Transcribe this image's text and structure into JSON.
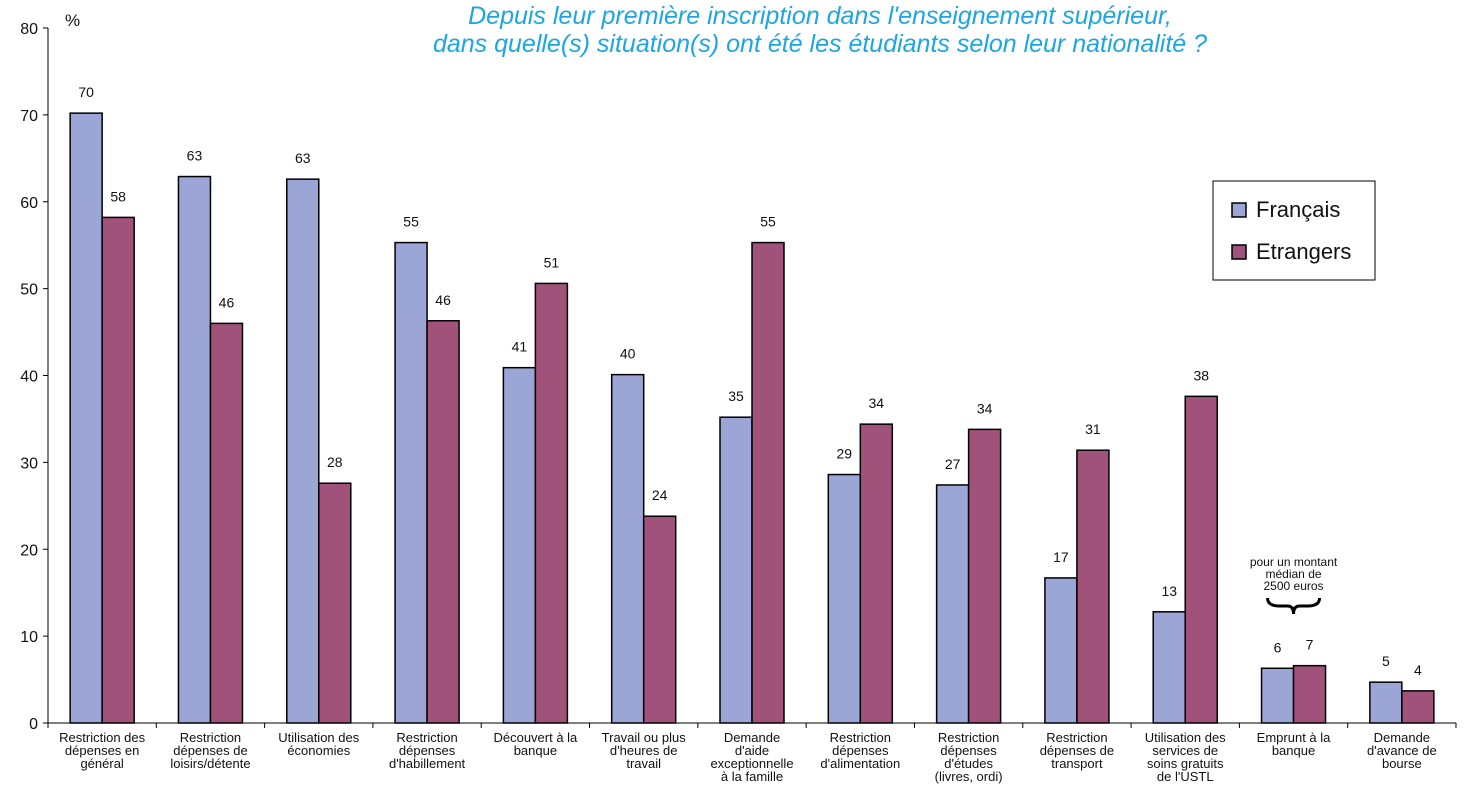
{
  "chart_data": {
    "type": "bar",
    "title": "Depuis leur première inscription dans l'enseignement supérieur,\ndans quelle(s) situation(s) ont été les étudiants selon leur nationalité ?",
    "y_label": "%",
    "annotation": "pour un montant\nmédian de\n2500 euros",
    "categories": [
      "Restriction des\ndépenses en\ngénéral",
      "Restriction\ndépenses de\nloisirs/détente",
      "Utilisation des\néconomies",
      "Restriction\ndépenses\nd'habillement",
      "Découvert à la\nbanque",
      "Travail ou plus\nd'heures de\ntravail",
      "Demande\nd'aide\nexceptionnelle\nà la famille",
      "Restriction\ndépenses\nd'alimentation",
      "Restriction\ndépenses\nd'études\n(livres, ordi)",
      "Restriction\ndépenses de\ntransport",
      "Utilisation des\nservices de\nsoins gratuits\nde l'USTL",
      "Emprunt à la\nbanque",
      "Demande\nd'avance de\nbourse"
    ],
    "series": [
      {
        "name": "Français",
        "color": "#9ba5d6",
        "values": [
          70.2,
          62.9,
          62.6,
          55.3,
          40.9,
          40.1,
          35.2,
          28.6,
          27.4,
          16.7,
          12.8,
          6.3,
          4.7
        ],
        "value_labels": [
          "70",
          "63",
          "63",
          "55",
          "41",
          "40",
          "35",
          "29",
          "27",
          "17",
          "13",
          "6",
          "5"
        ]
      },
      {
        "name": "Etrangers",
        "color": "#a0527a",
        "values": [
          58.2,
          46.0,
          27.6,
          46.3,
          50.6,
          23.8,
          55.3,
          34.4,
          33.8,
          31.4,
          37.6,
          6.6,
          3.7
        ],
        "value_labels": [
          "58",
          "46",
          "28",
          "46",
          "51",
          "24",
          "55",
          "34",
          "34",
          "31",
          "38",
          "7",
          "4"
        ]
      }
    ],
    "ylim": [
      0,
      80
    ],
    "yticks": [
      0,
      10,
      20,
      30,
      40,
      50,
      60,
      70,
      80
    ],
    "grid": false,
    "legend": "right"
  }
}
